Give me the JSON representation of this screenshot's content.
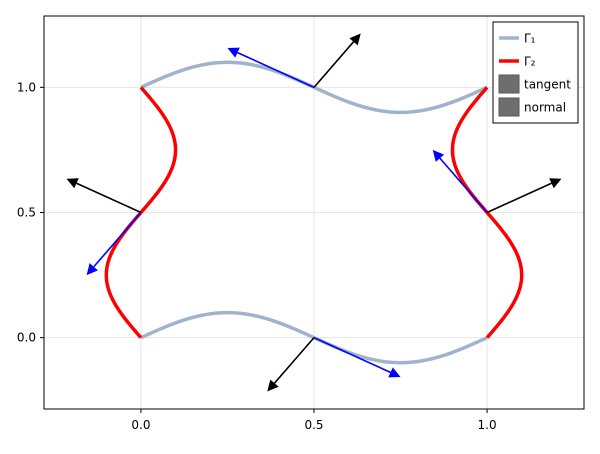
{
  "chart_data": {
    "type": "line",
    "title": "",
    "xlabel": "",
    "ylabel": "",
    "xlim": [
      -0.28,
      1.28
    ],
    "ylim": [
      -0.285,
      1.285
    ],
    "grid": true,
    "legend_position": "top-right",
    "x_ticks": [
      {
        "value": 0.0,
        "label": "0.0"
      },
      {
        "value": 0.5,
        "label": "0.5"
      },
      {
        "value": 1.0,
        "label": "1.0"
      }
    ],
    "y_ticks": [
      {
        "value": 0.0,
        "label": "0.0"
      },
      {
        "value": 0.5,
        "label": "0.5"
      },
      {
        "value": 1.0,
        "label": "1.0"
      }
    ],
    "series": [
      {
        "name": "Γ₁",
        "color": "#9fb4cc",
        "curves": [
          {
            "axis": "x",
            "from": 0,
            "to": 1,
            "base": 0,
            "amplitude": 0.1,
            "frequency": 1
          },
          {
            "axis": "x",
            "from": 0,
            "to": 1,
            "base": 1,
            "amplitude": 0.1,
            "frequency": 1
          }
        ]
      },
      {
        "name": "Γ₂",
        "color": "#ff0000",
        "curves": [
          {
            "axis": "y",
            "from": 0,
            "to": 1,
            "base": 0,
            "amplitude": -0.1,
            "frequency": 1
          },
          {
            "axis": "y",
            "from": 0,
            "to": 1,
            "base": 1,
            "amplitude": 0.1,
            "frequency": 1
          }
        ]
      }
    ],
    "tangent_arrows": [
      {
        "x": 0.5,
        "y": 1.0,
        "dx": -0.25,
        "dy": 0.157
      },
      {
        "x": 0.5,
        "y": 0.0,
        "dx": 0.25,
        "dy": -0.157
      },
      {
        "x": 0.0,
        "y": 0.5,
        "dx": -0.157,
        "dy": -0.25
      },
      {
        "x": 1.0,
        "y": 0.5,
        "dx": -0.157,
        "dy": 0.25
      }
    ],
    "normal_arrows": [
      {
        "x": 0.5,
        "y": 1.0,
        "dx": 0.135,
        "dy": 0.215
      },
      {
        "x": 0.5,
        "y": 0.0,
        "dx": -0.135,
        "dy": -0.215
      },
      {
        "x": 0.0,
        "y": 0.5,
        "dx": -0.215,
        "dy": 0.135
      },
      {
        "x": 1.0,
        "y": 0.5,
        "dx": 0.215,
        "dy": 0.135
      }
    ],
    "arrow_colors": {
      "tangent": "#0000ff",
      "normal": "#000000"
    },
    "legend": [
      {
        "label": "Γ₁",
        "kind": "line",
        "color": "#9fb4cc"
      },
      {
        "label": "Γ₂",
        "kind": "line",
        "color": "#ff0000"
      },
      {
        "label": "tangent",
        "kind": "patch",
        "color": "#6e6e6e"
      },
      {
        "label": "normal",
        "kind": "patch",
        "color": "#6e6e6e"
      }
    ]
  }
}
